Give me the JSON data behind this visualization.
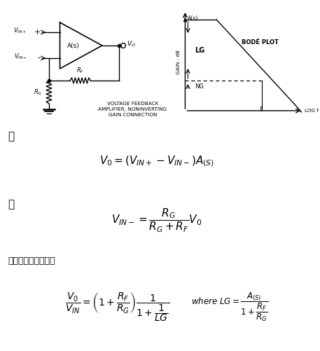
{
  "bg_color": "#ffffff",
  "text_color": "#000000",
  "label_gen": "跟",
  "label_and": "和",
  "label_sub": "替换并简化以获得：",
  "circuit_label": "VOLTAGE FEEDBACK\nAMPLIFIER, NONINVERTING\nGAIN CONNECTION",
  "bode_label": "BODÉ PLOT"
}
